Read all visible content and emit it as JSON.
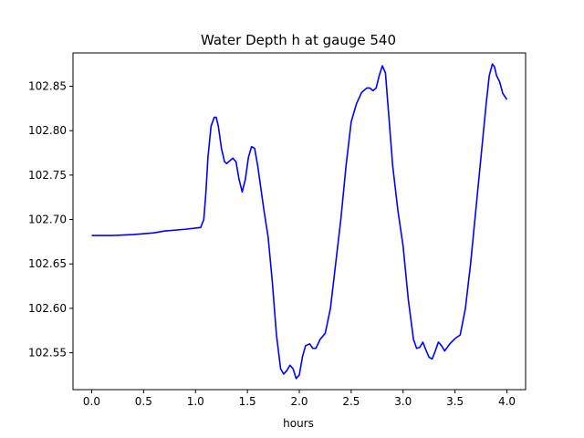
{
  "chart_data": {
    "type": "line",
    "title": "Water Depth h at gauge 540",
    "xlabel": "hours",
    "ylabel": "",
    "xlim": [
      -0.18,
      4.18
    ],
    "ylim": [
      102.5085,
      102.8875
    ],
    "xticks": [
      0.0,
      0.5,
      1.0,
      1.5,
      2.0,
      2.5,
      3.0,
      3.5,
      4.0
    ],
    "xtick_labels": [
      "0.0",
      "0.5",
      "1.0",
      "1.5",
      "2.0",
      "2.5",
      "3.0",
      "3.5",
      "4.0"
    ],
    "yticks": [
      102.55,
      102.6,
      102.65,
      102.7,
      102.75,
      102.8,
      102.85
    ],
    "ytick_labels": [
      "102.55",
      "102.60",
      "102.65",
      "102.70",
      "102.75",
      "102.80",
      "102.85"
    ],
    "grid": false,
    "series": [
      {
        "color": "#0000ff",
        "x": [
          0.0,
          0.2,
          0.4,
          0.6,
          0.7,
          0.9,
          1.05,
          1.08,
          1.1,
          1.12,
          1.15,
          1.18,
          1.2,
          1.22,
          1.25,
          1.28,
          1.3,
          1.33,
          1.36,
          1.39,
          1.42,
          1.45,
          1.48,
          1.51,
          1.54,
          1.57,
          1.6,
          1.63,
          1.66,
          1.7,
          1.74,
          1.78,
          1.82,
          1.85,
          1.88,
          1.91,
          1.94,
          1.97,
          2.0,
          2.03,
          2.06,
          2.1,
          2.13,
          2.16,
          2.2,
          2.25,
          2.3,
          2.35,
          2.4,
          2.45,
          2.5,
          2.55,
          2.6,
          2.65,
          2.68,
          2.71,
          2.74,
          2.77,
          2.8,
          2.83,
          2.86,
          2.9,
          2.95,
          3.0,
          3.05,
          3.1,
          3.13,
          3.16,
          3.19,
          3.22,
          3.25,
          3.28,
          3.31,
          3.34,
          3.37,
          3.4,
          3.45,
          3.5,
          3.55,
          3.6,
          3.65,
          3.7,
          3.75,
          3.8,
          3.83,
          3.86,
          3.88,
          3.9,
          3.93,
          3.96,
          4.0
        ],
        "y": [
          102.682,
          102.682,
          102.683,
          102.685,
          102.687,
          102.689,
          102.691,
          102.7,
          102.73,
          102.77,
          102.805,
          102.815,
          102.815,
          102.805,
          102.78,
          102.765,
          102.763,
          102.766,
          102.769,
          102.765,
          102.745,
          102.731,
          102.745,
          102.77,
          102.782,
          102.78,
          102.76,
          102.735,
          102.71,
          102.68,
          102.63,
          102.57,
          102.532,
          102.526,
          102.53,
          102.536,
          102.532,
          102.521,
          102.525,
          102.545,
          102.558,
          102.56,
          102.555,
          102.555,
          102.565,
          102.572,
          102.6,
          102.65,
          102.7,
          102.76,
          102.81,
          102.83,
          102.843,
          102.848,
          102.848,
          102.845,
          102.848,
          102.862,
          102.873,
          102.865,
          102.82,
          102.76,
          102.71,
          102.67,
          102.61,
          102.565,
          102.555,
          102.556,
          102.562,
          102.553,
          102.545,
          102.543,
          102.552,
          102.562,
          102.558,
          102.552,
          102.56,
          102.566,
          102.57,
          102.6,
          102.65,
          102.71,
          102.77,
          102.83,
          102.862,
          102.875,
          102.872,
          102.862,
          102.855,
          102.842,
          102.835
        ]
      }
    ]
  }
}
